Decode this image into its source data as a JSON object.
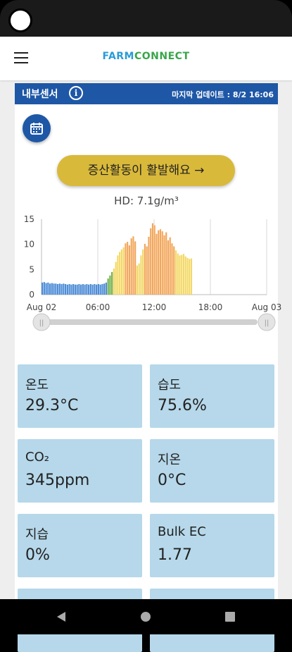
{
  "app": {
    "logo_farm": "FARM",
    "logo_connect": "CONNECT"
  },
  "sensor_panel": {
    "title": "내부센서",
    "info_icon": "i",
    "last_update": "마지막 업데이트 : 8/2 16:06",
    "status_button": "증산활동이 활발해요 →",
    "hd_text": "HD: 7.1g/m³"
  },
  "chart_data": {
    "type": "bar",
    "ylim": [
      0,
      15
    ],
    "yticks": [
      0,
      5,
      10,
      15
    ],
    "xticks": [
      "Aug 02",
      "06:00",
      "12:00",
      "18:00",
      "Aug 03"
    ],
    "x_range_hours": [
      0,
      24
    ],
    "hd_values": [
      2.4,
      2.5,
      2.3,
      2.4,
      2.2,
      2.3,
      2.2,
      2.2,
      2.1,
      2.2,
      2.1,
      2.2,
      2.1,
      2.0,
      2.1,
      2.0,
      2.1,
      2.0,
      2.0,
      2.1,
      2.0,
      2.1,
      2.0,
      2.1,
      2.0,
      2.1,
      2.0,
      2.1,
      2.0,
      2.1,
      2.0,
      2.1,
      2.2,
      2.4,
      3.2,
      3.8,
      4.5,
      5.2,
      6.5,
      7.8,
      8.5,
      9.0,
      9.4,
      10.2,
      10.5,
      9.8,
      11.2,
      11.6,
      10.6,
      5.8,
      6.2,
      7.8,
      9.0,
      10.1,
      9.6,
      11.5,
      13.2,
      14.2,
      13.8,
      12.1,
      12.8,
      13.0,
      12.6,
      11.8,
      12.4,
      10.8,
      11.4,
      10.2,
      9.6,
      8.8,
      8.2,
      7.8,
      7.9,
      8.1,
      7.6,
      7.3,
      7.1,
      7.2
    ]
  },
  "slider": {
    "left_handle": "||",
    "right_handle": "||"
  },
  "sensors": [
    {
      "label": "온도",
      "value": "29.3°C"
    },
    {
      "label": "습도",
      "value": "75.6%"
    },
    {
      "label": "CO₂",
      "value": "345ppm"
    },
    {
      "label": "지온",
      "value": "0°C"
    },
    {
      "label": "지습",
      "value": "0%"
    },
    {
      "label": "Bulk EC",
      "value": "1.77"
    }
  ],
  "colors": {
    "header_blue": "#1e57a6",
    "tile_blue": "#b6d8ea",
    "status_yellow": "#d9b93a"
  }
}
